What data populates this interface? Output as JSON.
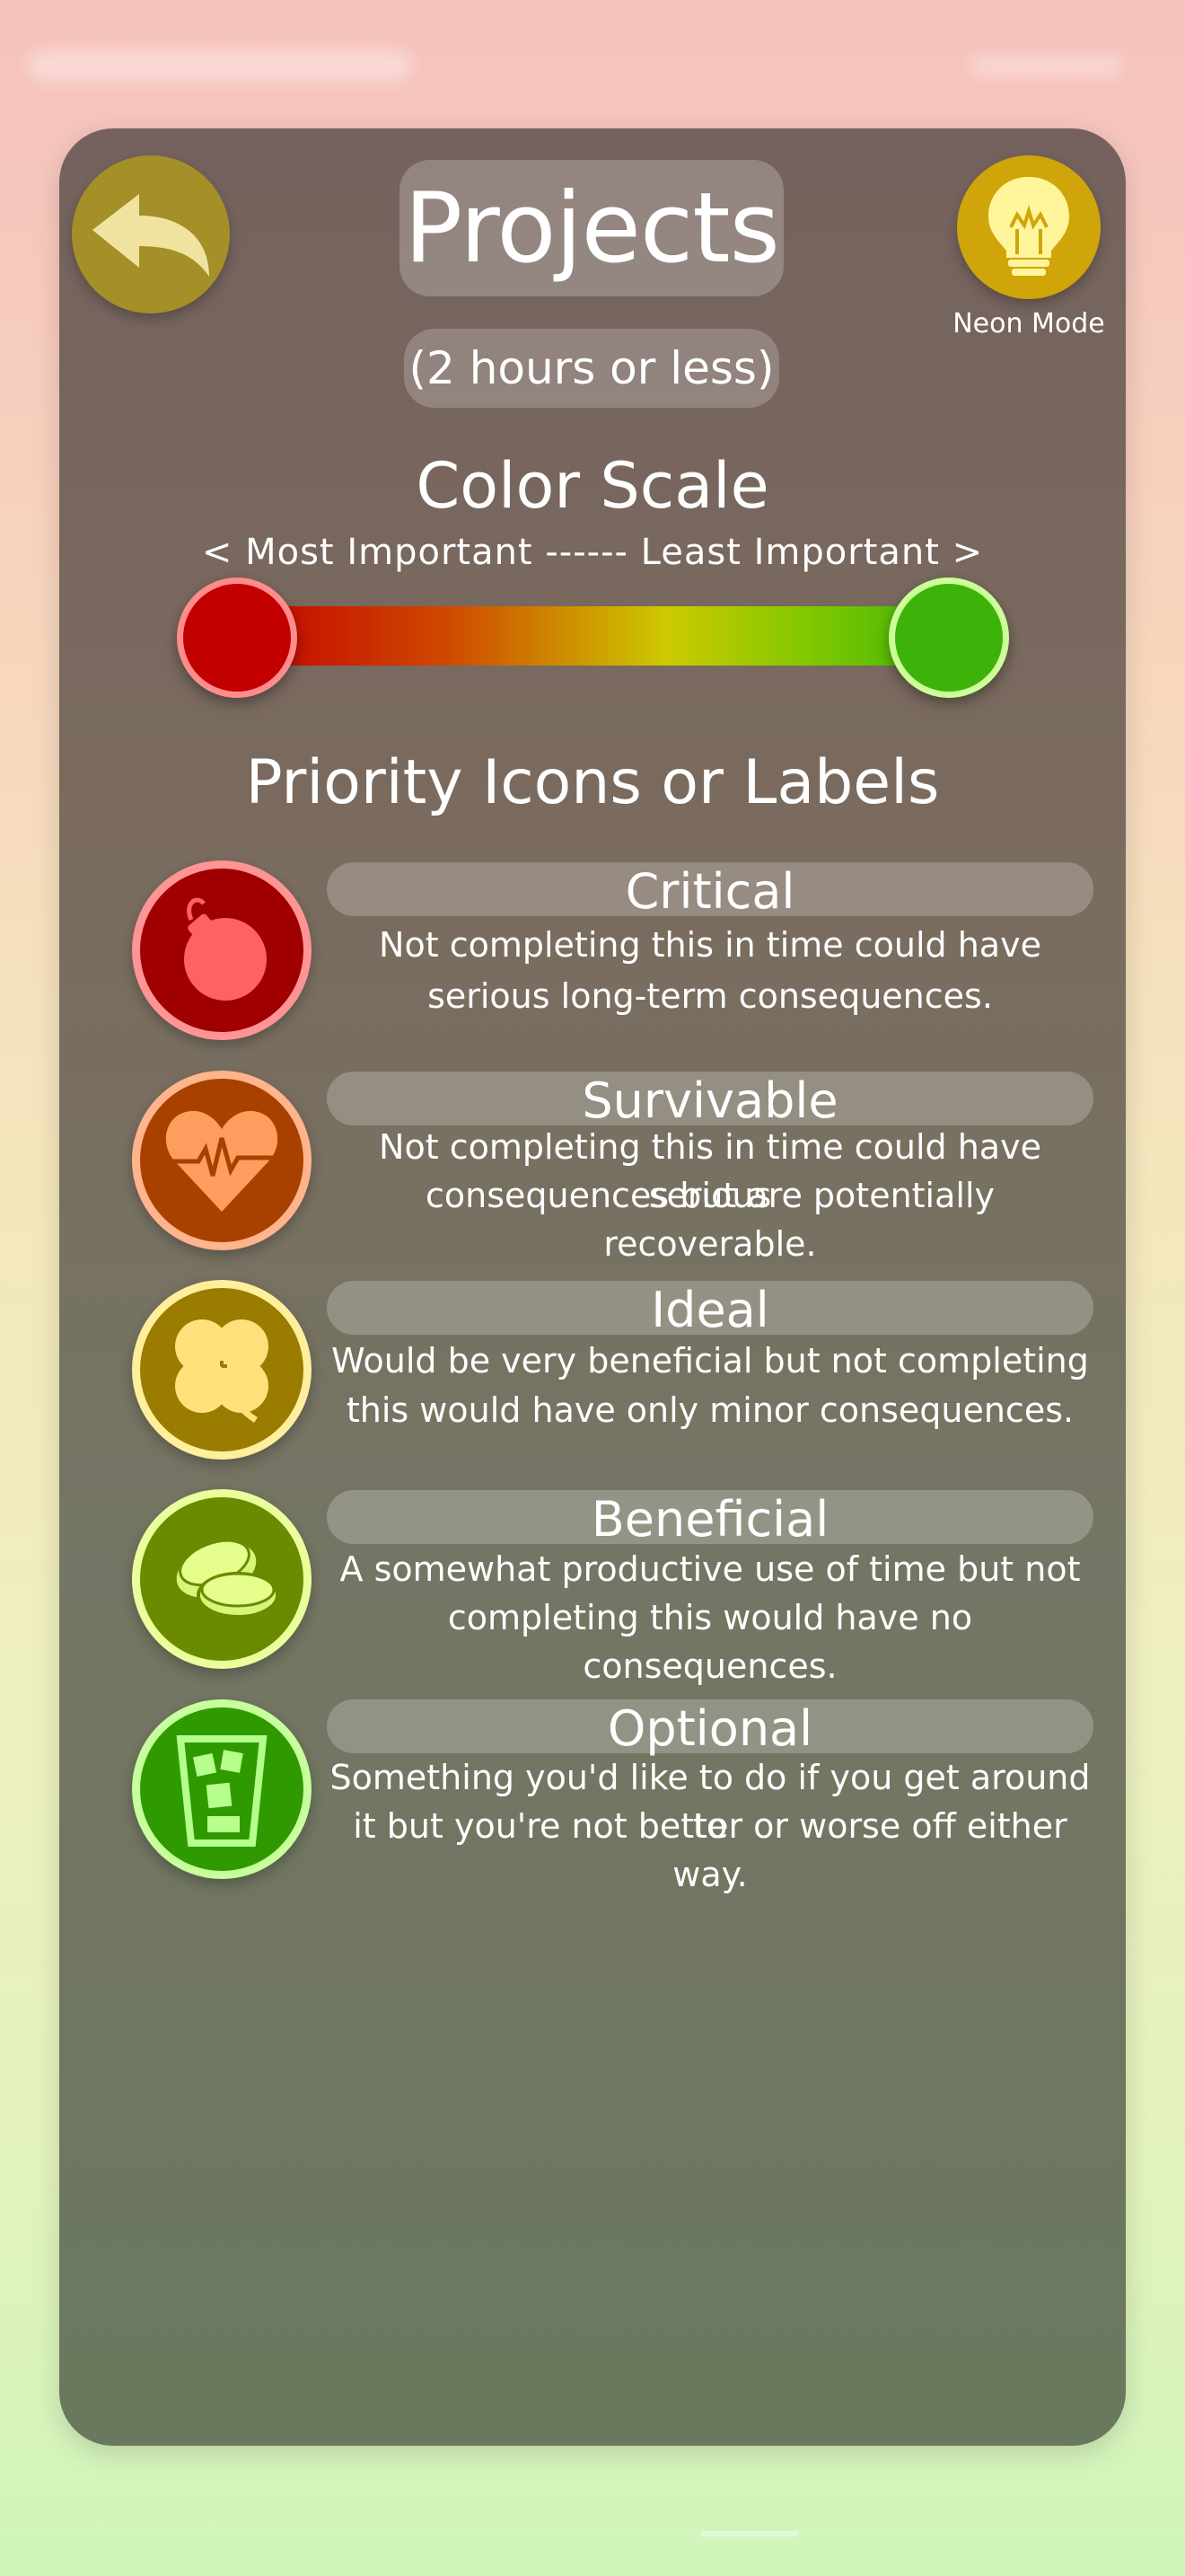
{
  "header": {
    "title": "Projects",
    "subtitle": "(2 hours or less)",
    "back_icon": "back-arrow-icon",
    "neon_icon": "lightbulb-icon",
    "neon_label": "Neon Mode"
  },
  "color_scale": {
    "title": "Color Scale",
    "caption": "< Most Important ------ Least Important >",
    "start_color": "#c20000",
    "end_color": "#3db30a"
  },
  "priorities": {
    "title": "Priority Icons or Labels",
    "items": [
      {
        "label": "Critical",
        "description_line1": "Not completing this in time could have",
        "description_line2": "serious long-term consequences.",
        "icon": "bomb-icon",
        "color": "#a00000"
      },
      {
        "label": "Survivable",
        "description_line1": "Not completing this in time could have serious",
        "description_line2": "consequences but are potentially recoverable.",
        "icon": "heartbeat-icon",
        "color": "#a84000"
      },
      {
        "label": "Ideal",
        "description_line1": "Would be very beneficial but not completing",
        "description_line2": "this would have only minor consequences.",
        "icon": "clover-icon",
        "color": "#9a7c00"
      },
      {
        "label": "Beneficial",
        "description_line1": "A somewhat productive use of time but not",
        "description_line2": "completing this would have no consequences.",
        "icon": "coins-icon",
        "color": "#6a8a00"
      },
      {
        "label": "Optional",
        "description_line1": "Something you'd like to do if you get around to",
        "description_line2": "it but you're not better or worse off either way.",
        "icon": "iced-drink-icon",
        "color": "#2f9a00"
      }
    ]
  }
}
